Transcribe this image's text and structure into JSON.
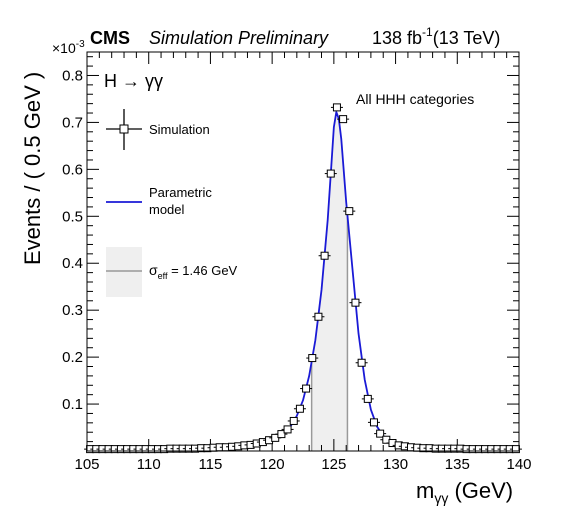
{
  "chart_data": {
    "type": "line",
    "experiment_label": "CMS",
    "status_label": "Simulation Preliminary",
    "lumi_label": "138 fb",
    "lumi_exponent": "-1",
    "energy_label": "(13 TeV)",
    "process_label": "H → γγ",
    "category_label": "All HHH categories",
    "xlabel_main": "m",
    "xlabel_sub": "γγ",
    "xlabel_unit": " (GeV)",
    "ylabel": "Events / ( 0.5 GeV )",
    "y_multiplier": "×10",
    "y_multiplier_exp": "-3",
    "xlim": [
      105,
      140
    ],
    "ylim": [
      0,
      0.85
    ],
    "x_ticks": [
      "105",
      "110",
      "115",
      "120",
      "125",
      "130",
      "135",
      "140"
    ],
    "y_ticks": [
      "0.1",
      "0.2",
      "0.3",
      "0.4",
      "0.5",
      "0.6",
      "0.7",
      "0.8"
    ],
    "legend": {
      "simulation": "Simulation",
      "model_line1": "Parametric",
      "model_line2": "model",
      "sigma_symbol": "σ",
      "sigma_sub": "eff",
      "sigma_value": " = 1.46 GeV"
    },
    "sigma_eff_band": [
      123.2,
      126.1
    ],
    "colors": {
      "model": "#1a1ad6",
      "band": "#efefef",
      "band_edge": "#999999"
    },
    "simulation_points": [
      {
        "x": 105.25,
        "y": 0.004
      },
      {
        "x": 105.75,
        "y": 0.004
      },
      {
        "x": 106.25,
        "y": 0.004
      },
      {
        "x": 106.75,
        "y": 0.004
      },
      {
        "x": 107.25,
        "y": 0.004
      },
      {
        "x": 107.75,
        "y": 0.004
      },
      {
        "x": 108.25,
        "y": 0.004
      },
      {
        "x": 108.75,
        "y": 0.004
      },
      {
        "x": 109.25,
        "y": 0.004
      },
      {
        "x": 109.75,
        "y": 0.004
      },
      {
        "x": 110.25,
        "y": 0.004
      },
      {
        "x": 110.75,
        "y": 0.004
      },
      {
        "x": 111.25,
        "y": 0.004
      },
      {
        "x": 111.75,
        "y": 0.005
      },
      {
        "x": 112.25,
        "y": 0.005
      },
      {
        "x": 112.75,
        "y": 0.005
      },
      {
        "x": 113.25,
        "y": 0.005
      },
      {
        "x": 113.75,
        "y": 0.005
      },
      {
        "x": 114.25,
        "y": 0.006
      },
      {
        "x": 114.75,
        "y": 0.006
      },
      {
        "x": 115.25,
        "y": 0.007
      },
      {
        "x": 115.75,
        "y": 0.008
      },
      {
        "x": 116.25,
        "y": 0.008
      },
      {
        "x": 116.75,
        "y": 0.009
      },
      {
        "x": 117.25,
        "y": 0.01
      },
      {
        "x": 117.75,
        "y": 0.012
      },
      {
        "x": 118.25,
        "y": 0.013
      },
      {
        "x": 118.75,
        "y": 0.016
      },
      {
        "x": 119.25,
        "y": 0.019
      },
      {
        "x": 119.75,
        "y": 0.023
      },
      {
        "x": 120.25,
        "y": 0.028
      },
      {
        "x": 120.75,
        "y": 0.036
      },
      {
        "x": 121.25,
        "y": 0.046
      },
      {
        "x": 121.75,
        "y": 0.064
      },
      {
        "x": 122.25,
        "y": 0.09
      },
      {
        "x": 122.75,
        "y": 0.133
      },
      {
        "x": 123.25,
        "y": 0.198
      },
      {
        "x": 123.75,
        "y": 0.286
      },
      {
        "x": 124.25,
        "y": 0.416
      },
      {
        "x": 124.75,
        "y": 0.591
      },
      {
        "x": 125.25,
        "y": 0.732
      },
      {
        "x": 125.75,
        "y": 0.707
      },
      {
        "x": 126.25,
        "y": 0.511
      },
      {
        "x": 126.75,
        "y": 0.316
      },
      {
        "x": 127.25,
        "y": 0.188
      },
      {
        "x": 127.75,
        "y": 0.111
      },
      {
        "x": 128.25,
        "y": 0.061
      },
      {
        "x": 128.75,
        "y": 0.037
      },
      {
        "x": 129.25,
        "y": 0.024
      },
      {
        "x": 129.75,
        "y": 0.017
      },
      {
        "x": 130.25,
        "y": 0.012
      },
      {
        "x": 130.75,
        "y": 0.01
      },
      {
        "x": 131.25,
        "y": 0.008
      },
      {
        "x": 131.75,
        "y": 0.007
      },
      {
        "x": 132.25,
        "y": 0.006
      },
      {
        "x": 132.75,
        "y": 0.006
      },
      {
        "x": 133.25,
        "y": 0.005
      },
      {
        "x": 133.75,
        "y": 0.005
      },
      {
        "x": 134.25,
        "y": 0.005
      },
      {
        "x": 134.75,
        "y": 0.005
      },
      {
        "x": 135.25,
        "y": 0.005
      },
      {
        "x": 135.75,
        "y": 0.004
      },
      {
        "x": 136.25,
        "y": 0.004
      },
      {
        "x": 136.75,
        "y": 0.004
      },
      {
        "x": 137.25,
        "y": 0.004
      },
      {
        "x": 137.75,
        "y": 0.004
      },
      {
        "x": 138.25,
        "y": 0.004
      },
      {
        "x": 138.75,
        "y": 0.004
      },
      {
        "x": 139.25,
        "y": 0.004
      },
      {
        "x": 139.75,
        "y": 0.004
      }
    ],
    "model_curve": [
      {
        "x": 105.0,
        "y": 0.003
      },
      {
        "x": 110.0,
        "y": 0.004
      },
      {
        "x": 114.0,
        "y": 0.005
      },
      {
        "x": 116.0,
        "y": 0.007
      },
      {
        "x": 118.0,
        "y": 0.011
      },
      {
        "x": 119.0,
        "y": 0.016
      },
      {
        "x": 120.0,
        "y": 0.024
      },
      {
        "x": 121.0,
        "y": 0.04
      },
      {
        "x": 121.5,
        "y": 0.053
      },
      {
        "x": 122.0,
        "y": 0.075
      },
      {
        "x": 122.5,
        "y": 0.108
      },
      {
        "x": 123.0,
        "y": 0.16
      },
      {
        "x": 123.5,
        "y": 0.236
      },
      {
        "x": 124.0,
        "y": 0.343
      },
      {
        "x": 124.5,
        "y": 0.492
      },
      {
        "x": 124.8,
        "y": 0.61
      },
      {
        "x": 125.0,
        "y": 0.69
      },
      {
        "x": 125.2,
        "y": 0.722
      },
      {
        "x": 125.4,
        "y": 0.708
      },
      {
        "x": 125.6,
        "y": 0.665
      },
      {
        "x": 126.0,
        "y": 0.53
      },
      {
        "x": 126.5,
        "y": 0.39
      },
      {
        "x": 127.0,
        "y": 0.25
      },
      {
        "x": 127.5,
        "y": 0.152
      },
      {
        "x": 128.0,
        "y": 0.088
      },
      {
        "x": 128.5,
        "y": 0.052
      },
      {
        "x": 129.0,
        "y": 0.032
      },
      {
        "x": 130.0,
        "y": 0.017
      },
      {
        "x": 131.0,
        "y": 0.011
      },
      {
        "x": 132.0,
        "y": 0.008
      },
      {
        "x": 134.0,
        "y": 0.006
      },
      {
        "x": 137.0,
        "y": 0.004
      },
      {
        "x": 140.0,
        "y": 0.003
      }
    ]
  }
}
